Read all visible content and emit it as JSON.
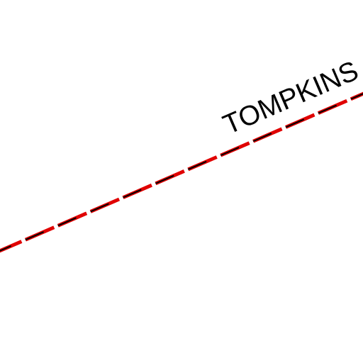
{
  "map": {
    "boundary_label": "TOMPKINS",
    "boundary_colors": {
      "outer": "#e00000",
      "inner_dash": "#000000"
    },
    "background_color": "#ffffff"
  }
}
